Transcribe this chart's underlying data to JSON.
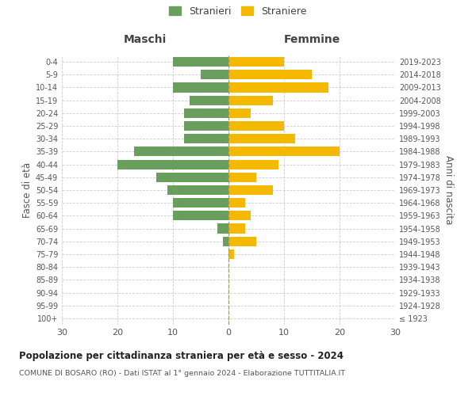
{
  "age_groups": [
    "100+",
    "95-99",
    "90-94",
    "85-89",
    "80-84",
    "75-79",
    "70-74",
    "65-69",
    "60-64",
    "55-59",
    "50-54",
    "45-49",
    "40-44",
    "35-39",
    "30-34",
    "25-29",
    "20-24",
    "15-19",
    "10-14",
    "5-9",
    "0-4"
  ],
  "birth_years": [
    "≤ 1923",
    "1924-1928",
    "1929-1933",
    "1934-1938",
    "1939-1943",
    "1944-1948",
    "1949-1953",
    "1954-1958",
    "1959-1963",
    "1964-1968",
    "1969-1973",
    "1974-1978",
    "1979-1983",
    "1984-1988",
    "1989-1993",
    "1994-1998",
    "1999-2003",
    "2004-2008",
    "2009-2013",
    "2014-2018",
    "2019-2023"
  ],
  "males": [
    0,
    0,
    0,
    0,
    0,
    0,
    1,
    2,
    10,
    10,
    11,
    13,
    20,
    17,
    8,
    8,
    8,
    7,
    10,
    5,
    10
  ],
  "females": [
    0,
    0,
    0,
    0,
    0,
    1,
    5,
    3,
    4,
    3,
    8,
    5,
    9,
    20,
    12,
    10,
    4,
    8,
    18,
    15,
    10
  ],
  "color_male": "#6a9e5e",
  "color_female": "#f5b800",
  "xlim": 30,
  "title": "Popolazione per cittadinanza straniera per età e sesso - 2024",
  "subtitle": "COMUNE DI BOSARO (RO) - Dati ISTAT al 1° gennaio 2024 - Elaborazione TUTTITALIA.IT",
  "legend_male": "Stranieri",
  "legend_female": "Straniere",
  "ylabel_left": "Fasce di età",
  "ylabel_right": "Anni di nascita",
  "xlabel_left": "Maschi",
  "xlabel_top_right": "Femmine",
  "background_color": "#ffffff",
  "grid_color": "#cccccc"
}
